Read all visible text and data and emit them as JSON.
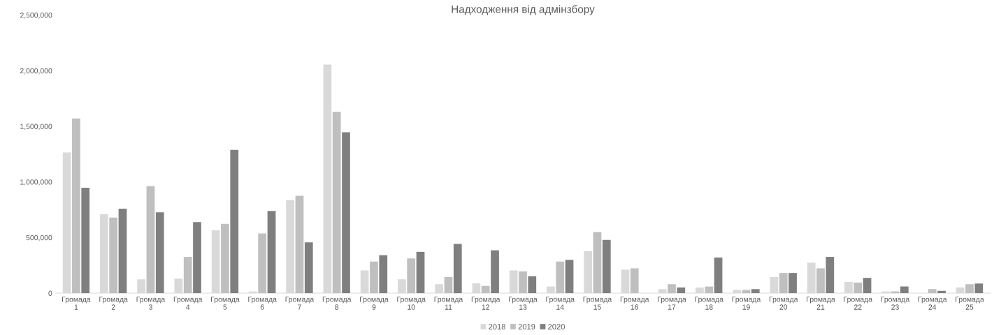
{
  "chart_data": {
    "type": "bar",
    "title": "Надходження від адмінзбору",
    "categories": [
      "Громада\n1",
      "Громада\n2",
      "Громада\n3",
      "Громада\n4",
      "Громада\n5",
      "Громада\n6",
      "Громада\n7",
      "Громада\n8",
      "Громада\n9",
      "Громада\n10",
      "Громада\n11",
      "Громада\n12",
      "Громада\n13",
      "Громада\n14",
      "Громада\n15",
      "Громада\n16",
      "Громада\n17",
      "Громада\n18",
      "Громада\n19",
      "Громада\n20",
      "Громада\n21",
      "Громада\n22",
      "Громада\n23",
      "Громада\n24",
      "Громада\n25"
    ],
    "series": [
      {
        "name": "2018",
        "color": "#d9d9d9",
        "values": [
          1265000,
          709000,
          124000,
          130000,
          564000,
          15000,
          834000,
          2055000,
          204000,
          124000,
          80000,
          88000,
          204000,
          59000,
          377000,
          211000,
          36000,
          51000,
          29000,
          145000,
          274000,
          101000,
          15000,
          null,
          51000
        ]
      },
      {
        "name": "2019",
        "color": "#bfbfbf",
        "values": [
          1571000,
          680000,
          962000,
          326000,
          623000,
          537000,
          876000,
          1630000,
          284000,
          312000,
          145000,
          65000,
          196000,
          284000,
          549000,
          223000,
          80000,
          59000,
          29000,
          181000,
          223000,
          95000,
          15000,
          36000,
          80000
        ]
      },
      {
        "name": "2020",
        "color": "#7f7f7f",
        "values": [
          947000,
          760000,
          726000,
          638000,
          1288000,
          739000,
          457000,
          1446000,
          341000,
          371000,
          442000,
          385000,
          152000,
          299000,
          478000,
          null,
          51000,
          320000,
          36000,
          181000,
          326000,
          137000,
          59000,
          21000,
          86000
        ]
      }
    ],
    "ylim": [
      0,
      2500000
    ],
    "yticks": [
      {
        "value": 0,
        "label": "0"
      },
      {
        "value": 500000,
        "label": "500,000"
      },
      {
        "value": 1000000,
        "label": "1,000,000"
      },
      {
        "value": 1500000,
        "label": "1,500,000"
      },
      {
        "value": 2000000,
        "label": "2,000,000"
      },
      {
        "value": 2500000,
        "label": "2,500,000"
      }
    ],
    "grid": false,
    "legend": "bottom"
  }
}
